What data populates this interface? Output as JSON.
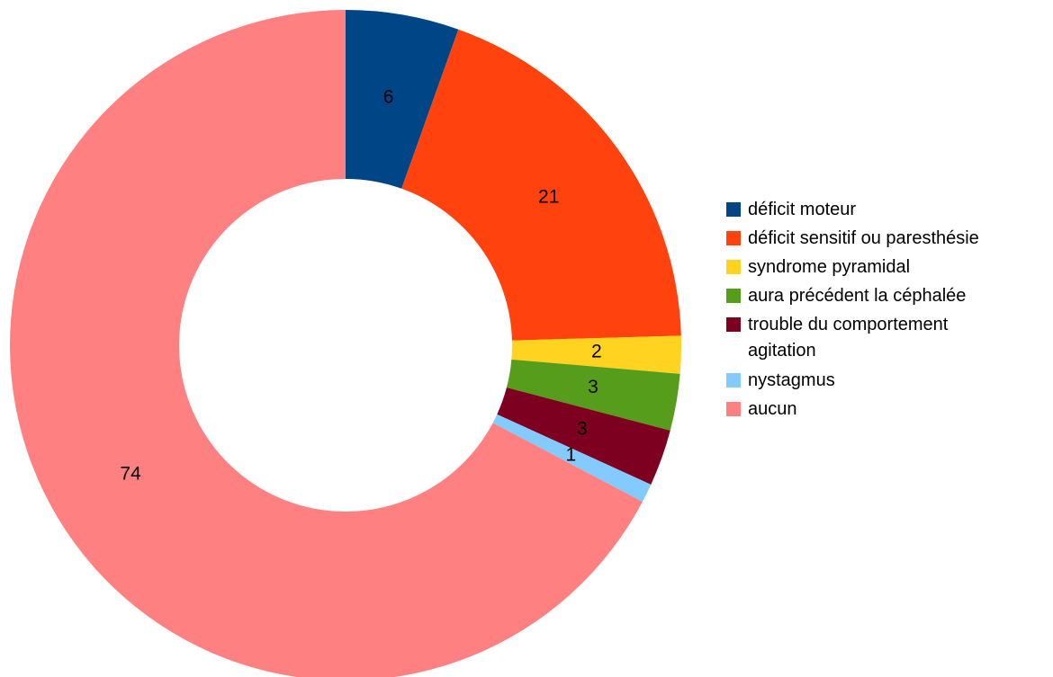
{
  "chart_data": {
    "type": "pie",
    "style": "donut",
    "title": "",
    "slices": [
      {
        "label": "déficit moteur",
        "value": 6,
        "color": "#004586"
      },
      {
        "label": "déficit sensitif ou paresthésie",
        "value": 21,
        "color": "#ff420e"
      },
      {
        "label": "syndrome pyramidal",
        "value": 2,
        "color": "#ffd320"
      },
      {
        "label": "aura précédent la céphalée",
        "value": 3,
        "color": "#579d1c"
      },
      {
        "label": "trouble du comportement\nagitation",
        "value": 3,
        "color": "#7e0021"
      },
      {
        "label": "nystagmus",
        "value": 1,
        "color": "#83caff"
      },
      {
        "label": "aucun",
        "value": 74,
        "color": "#ff8080"
      }
    ],
    "legend_position": "right",
    "start": "top, clockwise"
  }
}
